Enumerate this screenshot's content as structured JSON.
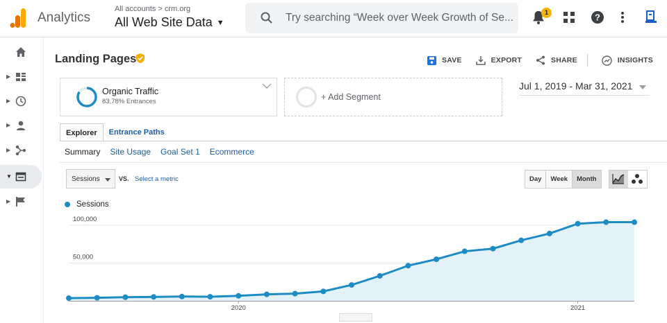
{
  "header": {
    "app_name": "Analytics",
    "account_path": "All accounts > crm.org",
    "property": "All Web Site Data",
    "search_placeholder": "Try searching “Week over Week Growth of Se...",
    "notification_count": "1"
  },
  "sidebar": {
    "items": [
      {
        "name": "home-icon"
      },
      {
        "name": "customization-icon"
      },
      {
        "name": "realtime-icon"
      },
      {
        "name": "audience-icon"
      },
      {
        "name": "acquisition-icon"
      },
      {
        "name": "behavior-icon"
      },
      {
        "name": "conversions-icon"
      }
    ],
    "active_index": 5
  },
  "report": {
    "title": "Landing Pages",
    "actions": {
      "save": "SAVE",
      "export": "EXPORT",
      "share": "SHARE",
      "insights": "INSIGHTS"
    },
    "segment": {
      "name": "Organic Traffic",
      "detail": "83.78% Entrances",
      "share": 0.8378
    },
    "add_segment": "+ Add Segment",
    "date_range": "Jul 1, 2019 - Mar 31, 2021",
    "tabs": [
      "Explorer",
      "Entrance Paths"
    ],
    "subtabs": [
      "Summary",
      "Site Usage",
      "Goal Set 1",
      "Ecommerce"
    ],
    "metric_select": "Sessions",
    "vs": "VS.",
    "select_metric": "Select a metric",
    "granularity": [
      "Day",
      "Week",
      "Month"
    ],
    "granularity_selected": "Month"
  },
  "colors": {
    "series": "#1e8cc4",
    "area": "#e3f1f9",
    "link": "#1a5fa8",
    "accent_orange": "#f9ab00"
  },
  "chart_data": {
    "type": "area",
    "legend": [
      "Sessions"
    ],
    "x": [
      "2019-07",
      "2019-08",
      "2019-09",
      "2019-10",
      "2019-11",
      "2019-12",
      "2020-01",
      "2020-02",
      "2020-03",
      "2020-04",
      "2020-05",
      "2020-06",
      "2020-07",
      "2020-08",
      "2020-09",
      "2020-10",
      "2020-11",
      "2020-12",
      "2021-01",
      "2021-02",
      "2021-03"
    ],
    "series": [
      {
        "name": "Sessions",
        "values": [
          3500,
          4000,
          4800,
          5200,
          5700,
          5400,
          6600,
          8600,
          9500,
          12500,
          21000,
          33000,
          46500,
          55000,
          65500,
          69000,
          80000,
          89000,
          102000,
          104000,
          104000
        ]
      }
    ],
    "y_ticks": [
      "100,000",
      "50,000"
    ],
    "x_ticks": [
      "2020",
      "2021"
    ],
    "ylim": [
      0,
      110000
    ],
    "grid": true
  }
}
